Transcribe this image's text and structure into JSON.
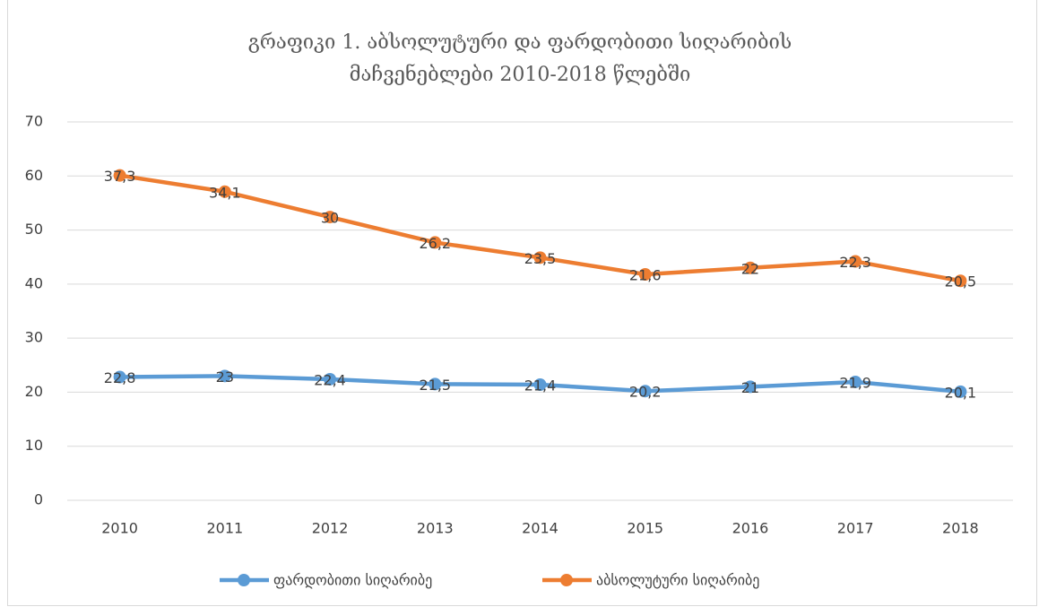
{
  "chart_data": {
    "type": "line",
    "stacked": true,
    "title": "გრაფიკი 1. აბსოლუტური და ფარდობითი სიღარიბის მაჩვენებლები 2010-2018 წლებში",
    "categories": [
      "2010",
      "2011",
      "2012",
      "2013",
      "2014",
      "2015",
      "2016",
      "2017",
      "2018"
    ],
    "series": [
      {
        "name": "ფარდობითი სიღარიბე",
        "color": "#5b9bd5",
        "values": [
          22.8,
          23,
          22.4,
          21.5,
          21.4,
          20.2,
          21,
          21.9,
          20.1
        ],
        "value_labels": [
          "22,8",
          "23",
          "22,4",
          "21,5",
          "21,4",
          "20,2",
          "21",
          "21,9",
          "20,1"
        ]
      },
      {
        "name": "აბსოლუტური სიღარიბე",
        "color": "#ed7d31",
        "values": [
          37.3,
          34.1,
          30,
          26.2,
          23.5,
          21.6,
          22,
          22.3,
          20.5
        ],
        "value_labels": [
          "37,3",
          "34,1",
          "30",
          "26,2",
          "23,5",
          "21,6",
          "22",
          "22,3",
          "20,5"
        ]
      }
    ],
    "ylim": [
      0,
      70
    ],
    "yticks": [
      0,
      10,
      20,
      30,
      40,
      50,
      60,
      70
    ],
    "grid": true,
    "legend": "bottom"
  }
}
